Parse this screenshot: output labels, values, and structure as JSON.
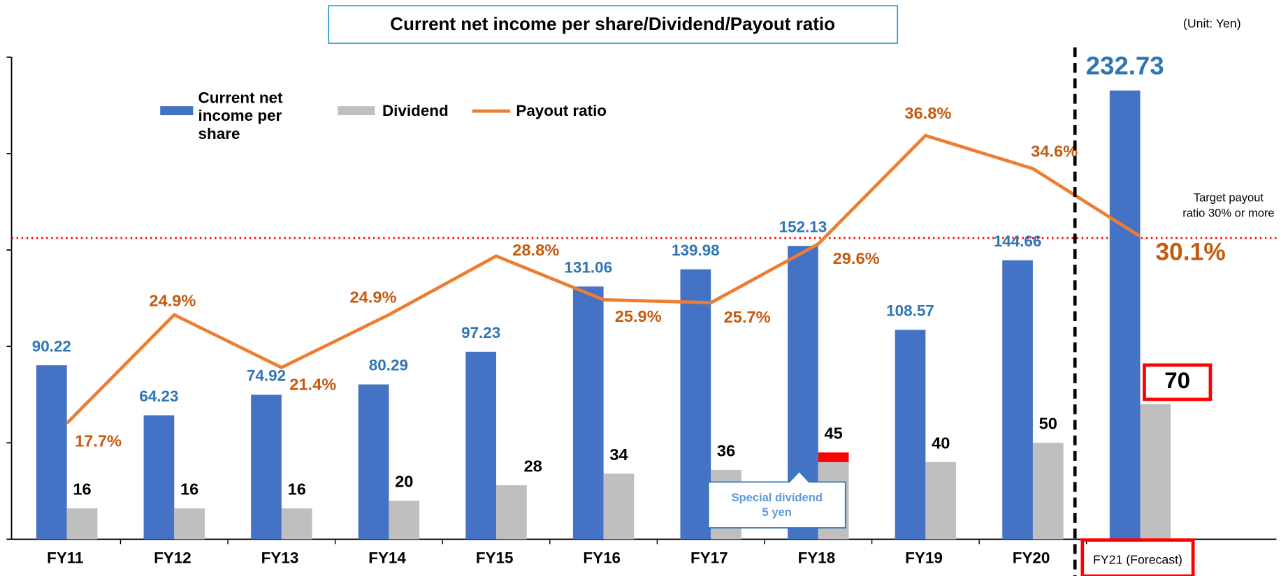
{
  "chart_data": {
    "type": "bar",
    "title": "Current net income per share/Dividend/Payout ratio",
    "unit_note": "(Unit: Yen)",
    "categories": [
      "FY11",
      "FY12",
      "FY13",
      "FY14",
      "FY15",
      "FY16",
      "FY17",
      "FY18",
      "FY19",
      "FY20",
      "FY21 (Forecast)"
    ],
    "series": [
      {
        "name": "Current net income per share",
        "color": "#4472c4",
        "values": [
          90.22,
          64.23,
          74.92,
          80.29,
          97.23,
          131.06,
          139.98,
          152.13,
          108.57,
          144.66,
          232.73
        ]
      },
      {
        "name": "Dividend",
        "color": "#bfbfbf",
        "values": [
          16,
          16,
          16,
          20,
          28,
          34,
          36,
          45,
          40,
          50,
          70
        ]
      },
      {
        "name": "Payout ratio",
        "color": "#ed7d31",
        "type": "line",
        "axis": "y2",
        "values": [
          17.7,
          24.9,
          21.4,
          24.9,
          28.8,
          25.9,
          25.7,
          29.6,
          36.8,
          34.6,
          30.1
        ],
        "value_labels": [
          "17.7%",
          "24.9%",
          "21.4%",
          "24.9%",
          "28.8%",
          "25.9%",
          "25.7%",
          "29.6%",
          "36.8%",
          "34.6%",
          "30.1%"
        ]
      }
    ],
    "ylim": [
      0,
      250
    ],
    "yticks": [
      0,
      50,
      100,
      150,
      200,
      250
    ],
    "y2lim": [
      10,
      42
    ],
    "target": {
      "value": 30,
      "label": "Target payout ratio 30% or more",
      "color": "#ff0000"
    },
    "special_dividend": {
      "value": 5,
      "label": "Special dividend 5 yen",
      "color": "#ff0000"
    },
    "grid": false
  }
}
